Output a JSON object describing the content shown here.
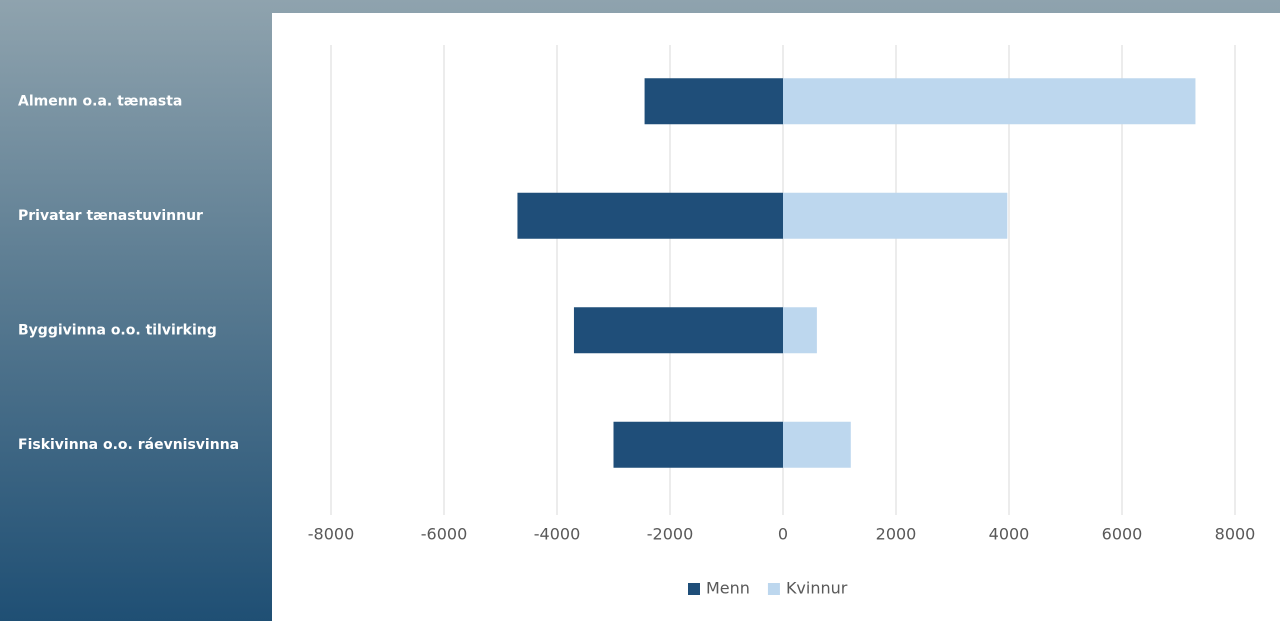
{
  "chart_data": {
    "type": "bar",
    "orientation": "horizontal",
    "categories": [
      "Almenn o.a. tænasta",
      "Privatar tænastuvinnur",
      "Byggivinna o.o. tilvirking",
      "Fiskivinna o.o. ráevnisvinna"
    ],
    "series": [
      {
        "name": "Menn",
        "color": "#1f4e79",
        "values": [
          -2450,
          -4700,
          -3700,
          -3000
        ]
      },
      {
        "name": "Kvinnur",
        "color": "#bdd7ee",
        "values": [
          7300,
          3970,
          600,
          1200
        ]
      }
    ],
    "xlim": [
      -8000,
      8000
    ],
    "xticks": [
      -8000,
      -6000,
      -4000,
      -2000,
      0,
      2000,
      4000,
      6000,
      8000
    ],
    "grid": true,
    "legend": "bottom"
  }
}
